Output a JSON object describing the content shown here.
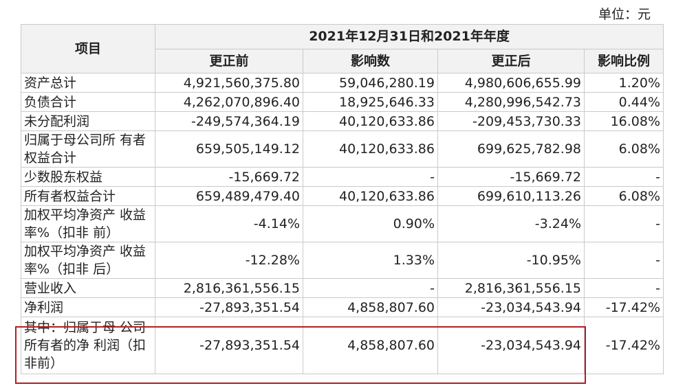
{
  "unit_label": "单位：元",
  "header": {
    "item": "项目",
    "period": "2021年12月31日和2021年年度",
    "columns": [
      "更正前",
      "影响数",
      "更正后",
      "影响比例"
    ]
  },
  "rows": [
    {
      "label": "资产总计",
      "before": "4,921,560,375.80",
      "impact": "59,046,280.19",
      "after": "4,980,606,655.99",
      "ratio": "1.20%"
    },
    {
      "label": "负债合计",
      "before": "4,262,070,896.40",
      "impact": "18,925,646.33",
      "after": "4,280,996,542.73",
      "ratio": "0.44%"
    },
    {
      "label": "未分配利润",
      "before": "-249,574,364.19",
      "impact": "40,120,633.86",
      "after": "-209,453,730.33",
      "ratio": "16.08%"
    },
    {
      "label": "归属于母公司所 有者权益合计",
      "before": "659,505,149.12",
      "impact": "40,120,633.86",
      "after": "699,625,782.98",
      "ratio": "6.08%"
    },
    {
      "label": "少数股东权益",
      "before": "-15,669.72",
      "impact": "-",
      "after": "-15,669.72",
      "ratio": "-"
    },
    {
      "label": "所有者权益合计",
      "before": "659,489,479.40",
      "impact": "40,120,633.86",
      "after": "699,610,113.26",
      "ratio": "6.08%"
    },
    {
      "label": "加权平均净资产 收益率%（扣非 前）",
      "before": "-4.14%",
      "impact": "0.90%",
      "after": "-3.24%",
      "ratio": "-"
    },
    {
      "label": "加权平均净资产 收益率%（扣非 后）",
      "before": "-12.28%",
      "impact": "1.33%",
      "after": "-10.95%",
      "ratio": "-"
    },
    {
      "label": "营业收入",
      "before": "2,816,361,556.15",
      "impact": "-",
      "after": "2,816,361,556.15",
      "ratio": "-"
    },
    {
      "label": "净利润",
      "before": "-27,893,351.54",
      "impact": "4,858,807.60",
      "after": "-23,034,543.94",
      "ratio": "-17.42%"
    },
    {
      "label": "其中：归属于母 公司所有者的净 利润（扣非前）",
      "before": "-27,893,351.54",
      "impact": "4,858,807.60",
      "after": "-23,034,543.94",
      "ratio": "-17.42%"
    }
  ],
  "highlight_color": "#b01e23"
}
